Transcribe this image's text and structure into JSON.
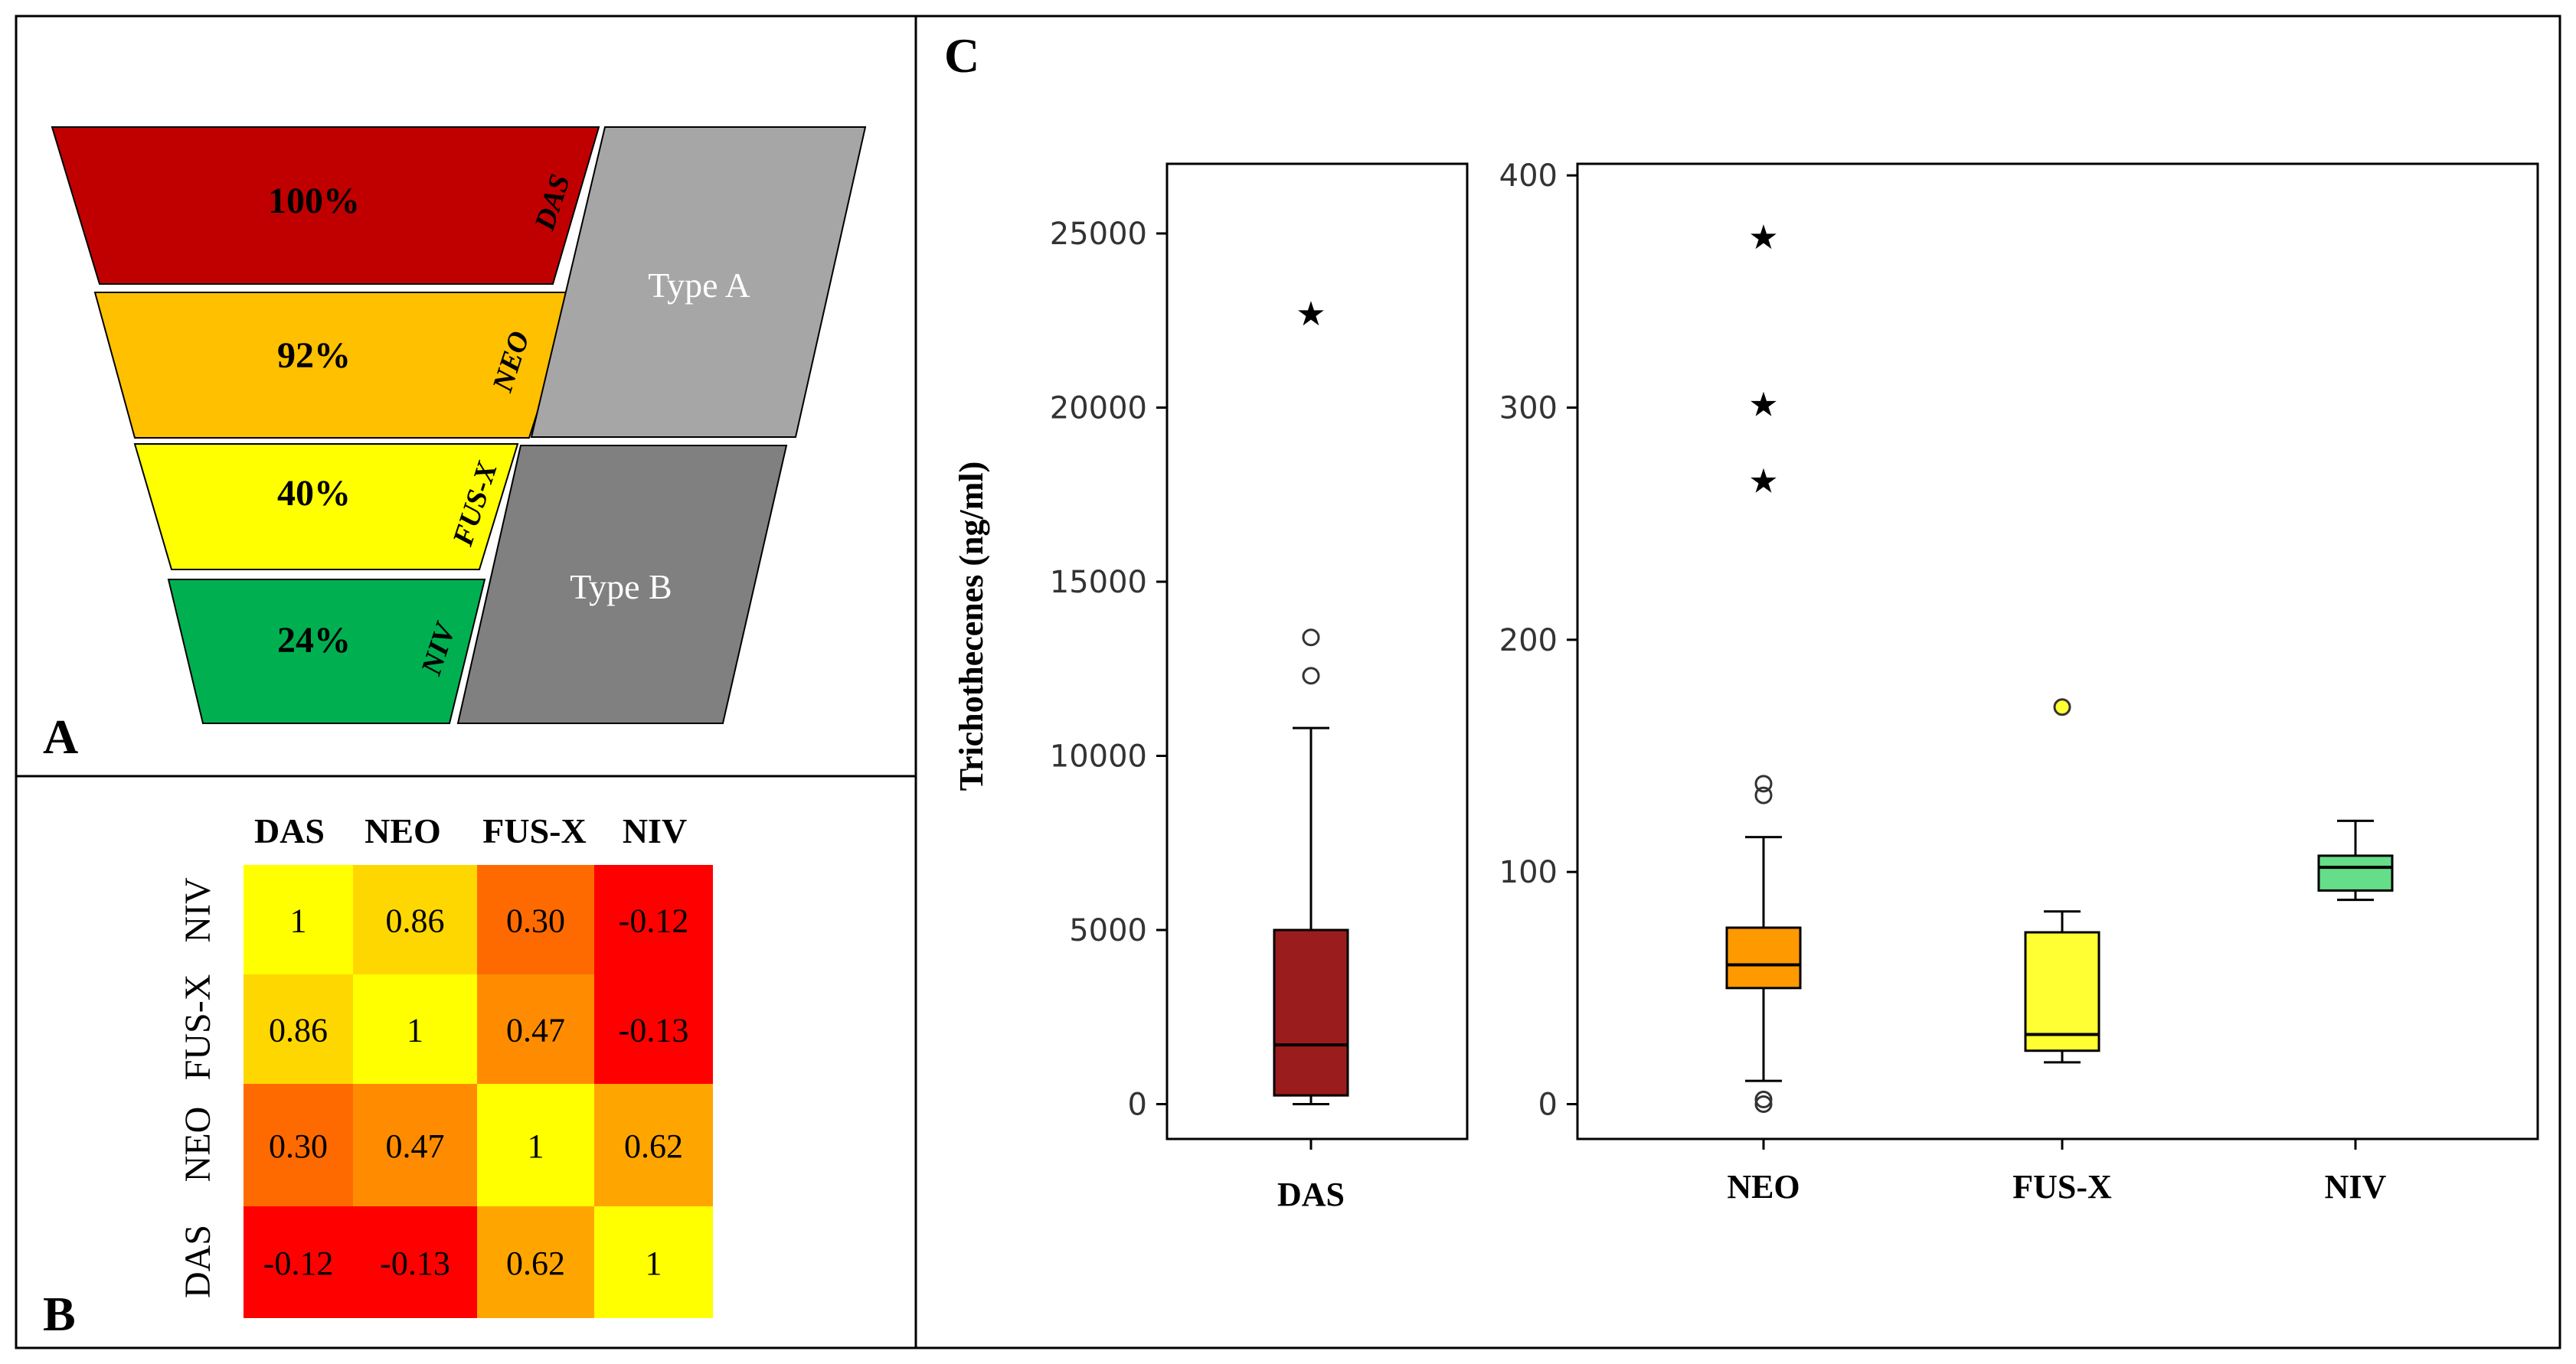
{
  "panel_a": {
    "label": "A",
    "stages": [
      {
        "toxin": "DAS",
        "percent": "100%",
        "color": "#c00000"
      },
      {
        "toxin": "NEO",
        "percent": "92%",
        "color": "#ffc000"
      },
      {
        "toxin": "FUS-X",
        "percent": "40%",
        "color": "#ffff00"
      },
      {
        "toxin": "NIV",
        "percent": "24%",
        "color": "#00b050"
      }
    ],
    "groups": [
      {
        "name": "Type A",
        "color": "#a6a6a6"
      },
      {
        "name": "Type B",
        "color": "#808080"
      }
    ]
  },
  "panel_b": {
    "label": "B",
    "columns": [
      "DAS",
      "NEO",
      "FUS-X",
      "NIV"
    ],
    "rows": [
      "NIV",
      "FUS-X",
      "NEO",
      "DAS"
    ],
    "cells": [
      [
        "1",
        "0.86",
        "0.30",
        "-0.12"
      ],
      [
        "0.86",
        "1",
        "0.47",
        "-0.13"
      ],
      [
        "0.30",
        "0.47",
        "1",
        "0.62"
      ],
      [
        "-0.12",
        "-0.13",
        "0.62",
        "1"
      ]
    ],
    "colors": {
      "one": "#ffff00",
      "r086": "#ffd700",
      "r047": "#ff8c00",
      "r030": "#ff6a00",
      "r062": "#ffa500",
      "negative": "#ff0000"
    }
  },
  "panel_c": {
    "label": "C",
    "ylabel": "Trichothecenes  (ng/ml)"
  },
  "chart_data": [
    {
      "type": "box",
      "title": "",
      "ylabel": "Trichothecenes  (ng/ml)",
      "categories": [
        "DAS"
      ],
      "ylim": [
        -1000,
        27000
      ],
      "yticks": [
        "0",
        "5000",
        "10000",
        "15000",
        "20000",
        "25000"
      ],
      "boxes": [
        {
          "name": "DAS",
          "min": 0,
          "q1": 250,
          "median": 1700,
          "q3": 5000,
          "max": 10800,
          "outliers": [
            12300,
            13400
          ],
          "extremes": [
            22800
          ],
          "color": "#9b1c1c"
        }
      ]
    },
    {
      "type": "box",
      "title": "",
      "ylabel": "Trichothecenes  (ng/ml)",
      "categories": [
        "NEO",
        "FUS-X",
        "NIV"
      ],
      "ylim": [
        -15,
        405
      ],
      "yticks": [
        "0",
        "100",
        "200",
        "300",
        "400"
      ],
      "boxes": [
        {
          "name": "NEO",
          "min": 10,
          "q1": 50,
          "median": 60,
          "q3": 76,
          "max": 115,
          "outliers": [
            0,
            2,
            133,
            138
          ],
          "extremes": [
            270,
            303,
            375
          ],
          "color": "#ff9900"
        },
        {
          "name": "FUS-X",
          "min": 18,
          "q1": 23,
          "median": 30,
          "q3": 74,
          "max": 83,
          "outliers": [
            171
          ],
          "extremes": [],
          "color": "#ffff33"
        },
        {
          "name": "NIV",
          "min": 88,
          "q1": 92,
          "median": 102,
          "q3": 107,
          "max": 122,
          "outliers": [],
          "extremes": [],
          "color": "#66dd88"
        }
      ]
    }
  ]
}
